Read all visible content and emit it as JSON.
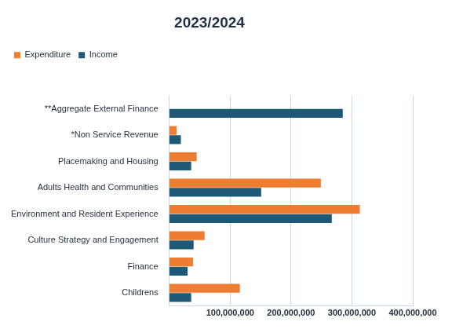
{
  "chart_data": {
    "type": "bar",
    "title": "2023/2024",
    "orientation": "horizontal",
    "categories": [
      "**Aggregate External Finance",
      "*Non Service Revenue",
      "Placemaking and Housing",
      "Adults Health and Communities",
      "Environment and Resident Experience",
      "Culture Strategy and Engagement",
      "Finance",
      "Childrens"
    ],
    "series": [
      {
        "name": "Expenditure",
        "color": "#ED7D31",
        "values": [
          null,
          12000000,
          45000000,
          249000000,
          313000000,
          58000000,
          39000000,
          116000000
        ]
      },
      {
        "name": "Income",
        "color": "#1E5A78",
        "values": [
          285000000,
          19000000,
          36000000,
          151000000,
          267000000,
          40000000,
          30000000,
          36000000
        ]
      }
    ],
    "xlim": [
      0,
      400000000
    ],
    "xticks": [
      {
        "value": 100000000,
        "label": "100,000,000"
      },
      {
        "value": 200000000,
        "label": "200,000,000"
      },
      {
        "value": 300000000,
        "label": "300,000,000"
      },
      {
        "value": 400000000,
        "label": "400,000,000"
      }
    ],
    "grid": true,
    "legend": "top-left"
  }
}
